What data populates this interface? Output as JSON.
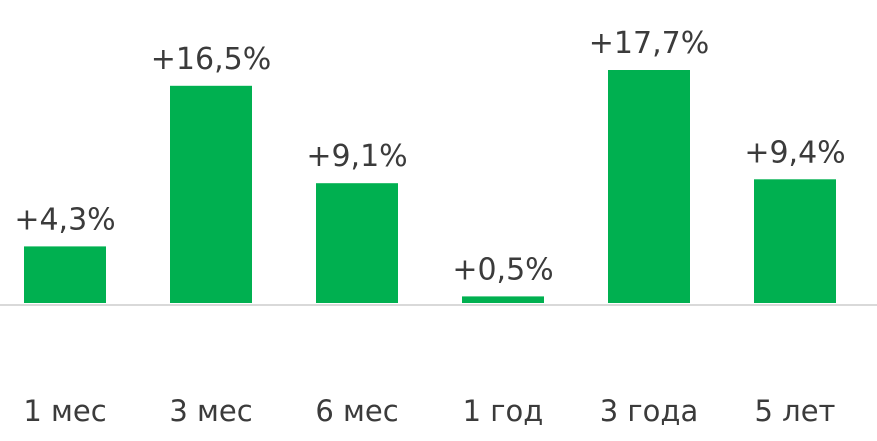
{
  "chart_data": {
    "type": "bar",
    "categories": [
      "1 мес",
      "3 мес",
      "6 мес",
      "1 год",
      "3 года",
      "5 лет"
    ],
    "values": [
      4.3,
      16.5,
      9.1,
      0.5,
      17.7,
      9.4
    ],
    "data_labels": [
      "+4,3%",
      "+16,5%",
      "+9,1%",
      "+0,5%",
      "+17,7%",
      "+9,4%"
    ],
    "title": "",
    "xlabel": "",
    "ylabel": "",
    "ylim": [
      0,
      17.7
    ],
    "grid": false,
    "legend": "none",
    "colors": {
      "bar": "#00b050",
      "baseline": "#d9d9d9",
      "text": "#3b3b3b"
    }
  }
}
